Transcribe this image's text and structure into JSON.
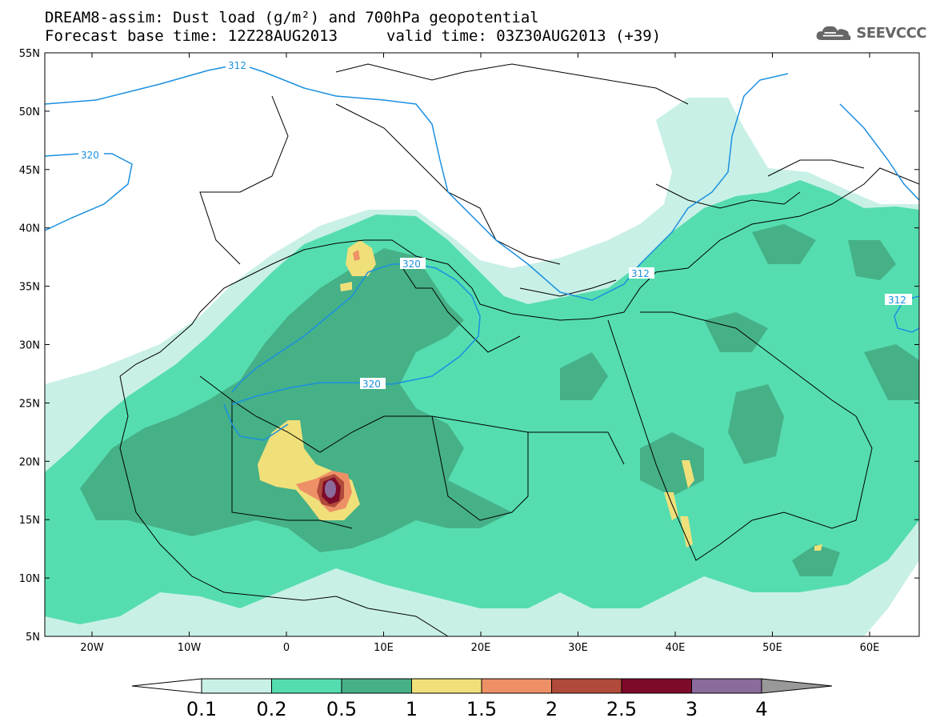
{
  "title": {
    "line1": "DREAM8-assim: Dust load (g/m²) and 700hPa geopotential",
    "line2": "Forecast base time: 12Z28AUG2013",
    "line2_valid": "valid time: 03Z30AUG2013 (+39)"
  },
  "logo": {
    "text": "SEEVCCC",
    "icon": "cloud-icon"
  },
  "axes": {
    "lat_labels": [
      "55N",
      "50N",
      "45N",
      "40N",
      "35N",
      "30N",
      "25N",
      "20N",
      "15N",
      "10N",
      "5N"
    ],
    "lon_labels": [
      "20W",
      "10W",
      "0",
      "10E",
      "20E",
      "30E",
      "40E",
      "50E",
      "60E"
    ]
  },
  "contours": {
    "labels": [
      "312",
      "320",
      "320",
      "320",
      "312",
      "312"
    ]
  },
  "colorbar": {
    "labels": [
      "0.1",
      "0.2",
      "0.5",
      "1",
      "1.5",
      "2",
      "2.5",
      "3",
      "4"
    ],
    "colors": [
      "#ffffff",
      "#c8f0e6",
      "#55ddb0",
      "#46b087",
      "#f0e07a",
      "#ee9066",
      "#b04a3a",
      "#7e0a2a",
      "#8b6a9c",
      "#999999"
    ]
  },
  "colors": {
    "dust_0_1": "#c8f0e6",
    "dust_0_2": "#55ddb0",
    "dust_0_5": "#46b087",
    "dust_1": "#f0e07a",
    "dust_1_5": "#ee9066",
    "dust_2": "#b04a3a",
    "dust_2_5": "#7e0a2a",
    "dust_3": "#8b6a9c",
    "contour": "#1a90e0",
    "coast": "#000000"
  }
}
